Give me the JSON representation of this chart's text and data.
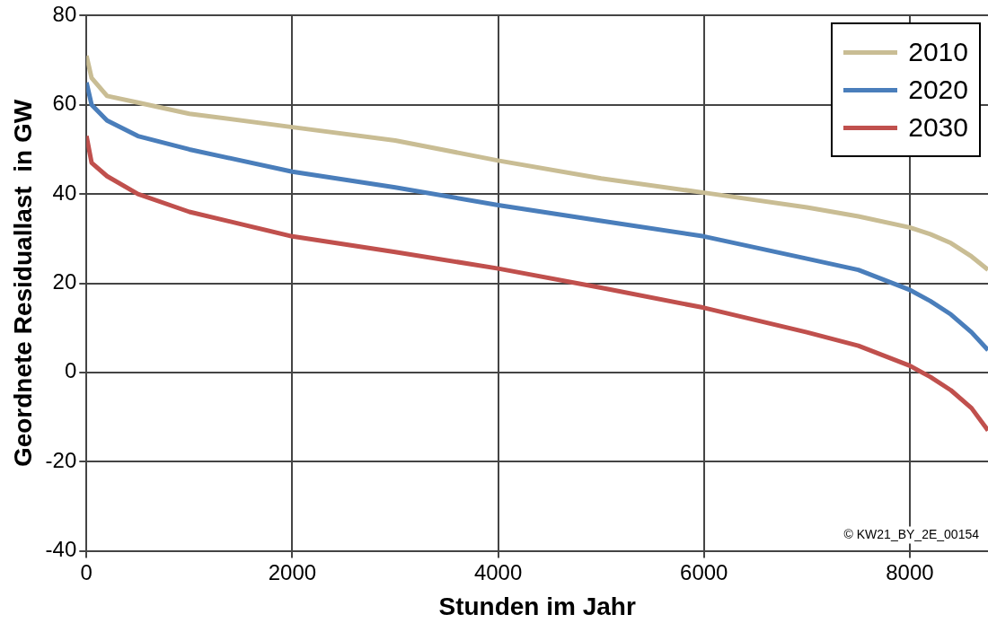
{
  "chart_data": {
    "type": "line",
    "xlabel": "Stunden im Jahr",
    "ylabel": "Geordnete Residuallast  in GW",
    "xlim": [
      0,
      8760
    ],
    "xticks": [
      0,
      2000,
      4000,
      6000,
      8000
    ],
    "ylim": [
      -40,
      80
    ],
    "yticks": [
      -40,
      -20,
      0,
      20,
      40,
      60,
      80
    ],
    "grid": true,
    "legend": "top right",
    "marker": "none",
    "line_style": "solid",
    "annotations": [
      "© KW21_BY_2E_00154"
    ],
    "x": [
      0,
      50,
      200,
      500,
      1000,
      2000,
      3000,
      4000,
      5000,
      6000,
      7000,
      7500,
      8000,
      8200,
      8400,
      8600,
      8760
    ],
    "series": [
      {
        "name": "2010",
        "color": "#c9bd94",
        "values": [
          71,
          66,
          62,
          60.5,
          58,
          55,
          52,
          47.5,
          43.5,
          40.3,
          37,
          35,
          32.5,
          31,
          29,
          26,
          23
        ]
      },
      {
        "name": "2020",
        "color": "#4a7ebb",
        "values": [
          65,
          60,
          56.5,
          53,
          50,
          45,
          41.5,
          37.5,
          34,
          30.5,
          25.5,
          23,
          18.5,
          16,
          13,
          9,
          5
        ]
      },
      {
        "name": "2030",
        "color": "#c0504d",
        "values": [
          53,
          47,
          44,
          40,
          36,
          30.5,
          27,
          23.3,
          19,
          14.5,
          9,
          6,
          1.5,
          -1,
          -4,
          -8,
          -13
        ]
      }
    ]
  }
}
